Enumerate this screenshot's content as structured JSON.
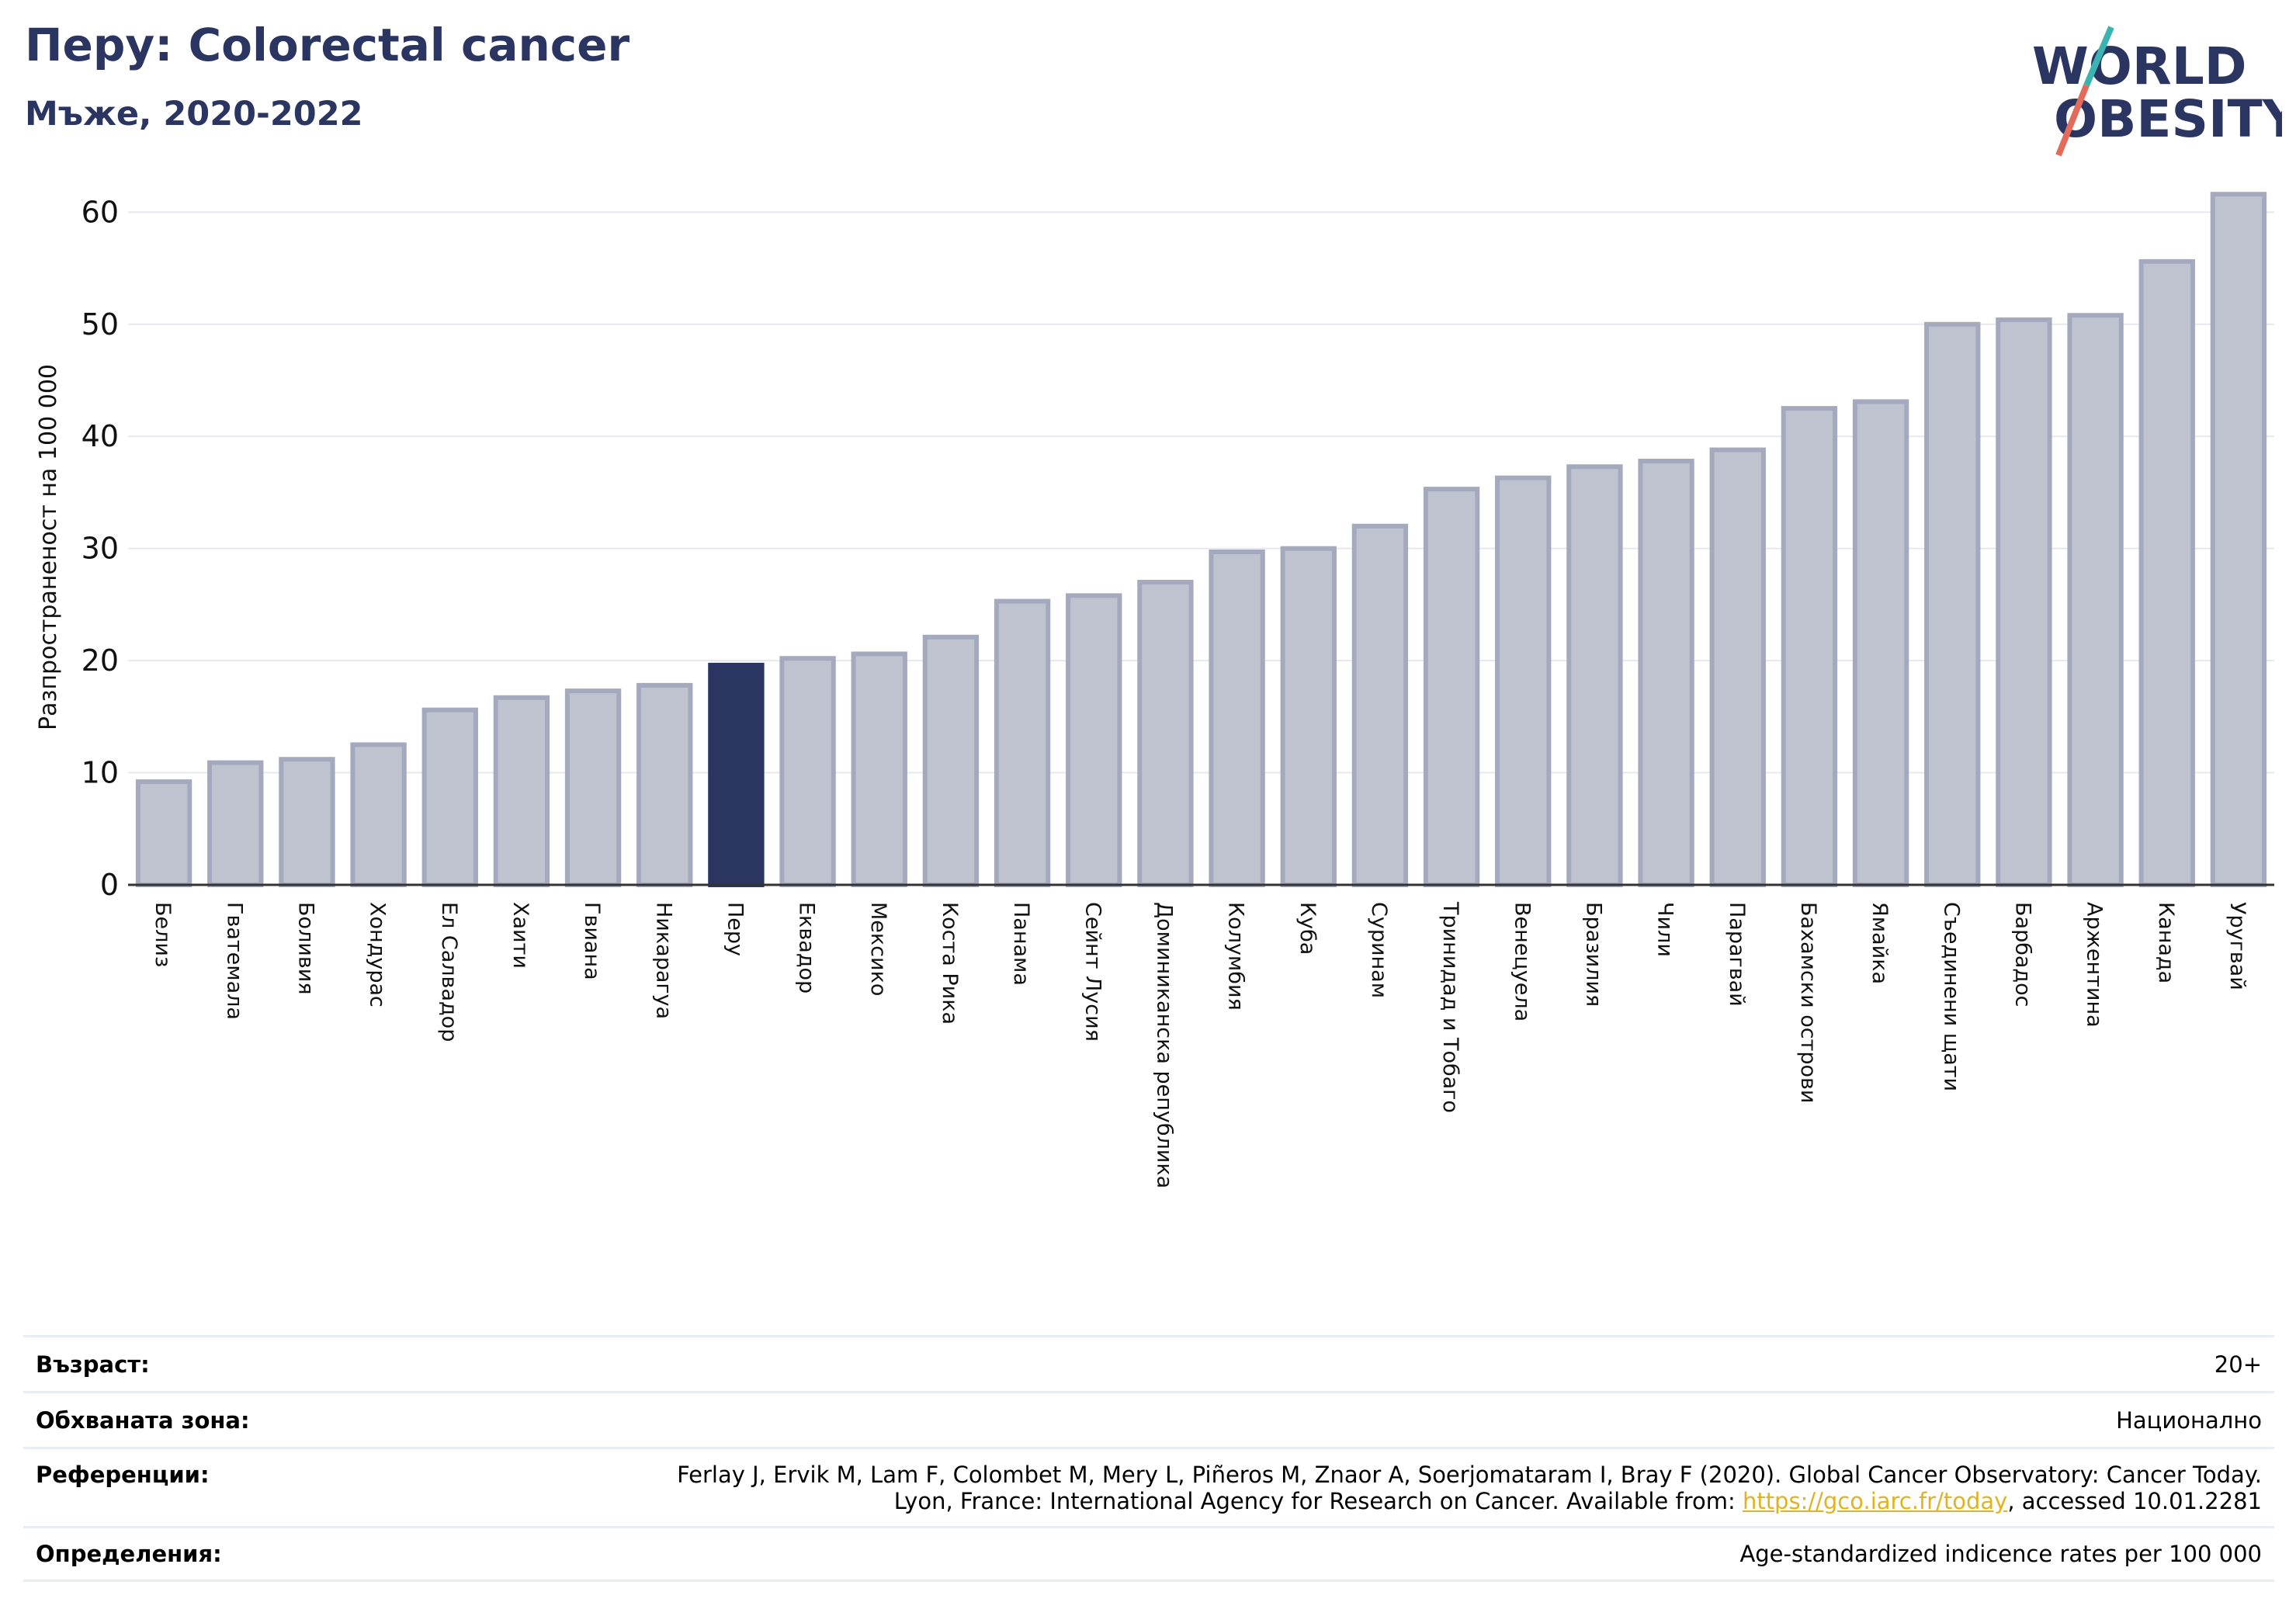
{
  "header": {
    "title": "Перу: Colorectal cancer",
    "subtitle": "Мъже, 2020-2022"
  },
  "logo": {
    "line1": "WORLD",
    "line2": "OBESITY",
    "colors": {
      "text": "#2b3561",
      "slash_top": "#3bb3b0",
      "slash_bottom": "#e36b5b"
    }
  },
  "chart_data": {
    "type": "bar",
    "ylabel": "Разпространеност  на 100 000",
    "ylim": [
      0,
      63
    ],
    "yticks": [
      0,
      10,
      20,
      30,
      40,
      50,
      60
    ],
    "grid": true,
    "highlight_category": "Перу",
    "colors": {
      "bar": "#bfc2cf",
      "bar_edge": "#a5a9bd",
      "highlight": "#2b3561",
      "grid": "#e6e8ee",
      "axis": "#333333"
    },
    "categories": [
      "Белиз",
      "Гватемала",
      "Боливия",
      "Хондурас",
      "Ел Салвадор",
      "Хаити",
      "Гвиана",
      "Никарагуа",
      "Перу",
      "Еквадор",
      "Мексико",
      "Коста Рика",
      "Панама",
      "Сейнт Лусия",
      "Доминиканска република",
      "Колумбия",
      "Куба",
      "Суринам",
      "Тринидад и Тобаго",
      "Венецуела",
      "Бразилия",
      "Чили",
      "Парагвай",
      "Бахамски острови",
      "Ямайка",
      "Съединени щати",
      "Барбадос",
      "Аржентина",
      "Канада",
      "Уругвай"
    ],
    "values": [
      9.2,
      10.9,
      11.2,
      12.5,
      15.6,
      16.7,
      17.3,
      17.8,
      19.6,
      20.2,
      20.6,
      22.1,
      25.3,
      25.8,
      27.0,
      29.7,
      30.0,
      32.0,
      35.3,
      36.3,
      37.3,
      37.8,
      38.8,
      42.5,
      43.1,
      50.0,
      50.4,
      50.8,
      55.6,
      61.6
    ]
  },
  "footer": {
    "rows": [
      {
        "label": "Възраст:",
        "value": "20+"
      },
      {
        "label": "Обхваната зона:",
        "value": "Национално"
      },
      {
        "label": "Референции:",
        "value_line1": "Ferlay J, Ervik M, Lam F, Colombet M, Mery L, Piñeros M, Znaor A, Soerjomataram I, Bray F (2020). Global Cancer Observatory: Cancer Today.",
        "value_line2_prefix": "Lyon, France: International Agency for Research on Cancer. Available from: ",
        "value_link": "https://gco.iarc.fr/today",
        "value_line2_suffix": ", accessed 10.01.2281"
      },
      {
        "label": "Определения:",
        "value": "Age-standardized indicence rates per 100 000"
      }
    ]
  }
}
